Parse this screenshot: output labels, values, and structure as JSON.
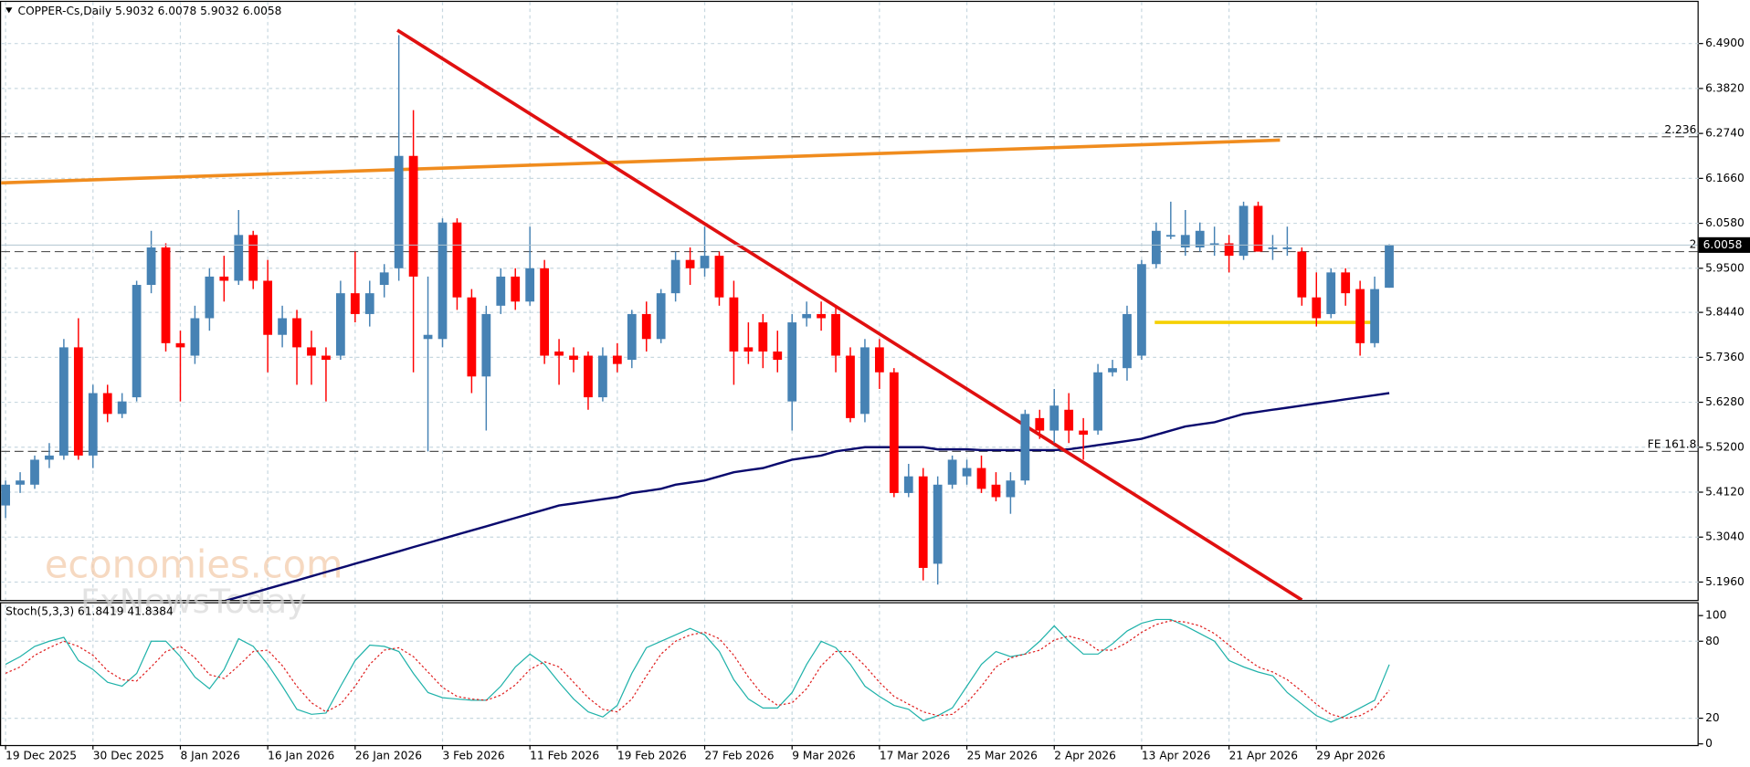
{
  "chart_data": {
    "type": "candlestick",
    "title": "COPPER-Cs,Daily",
    "watermarks": [
      "economies.com",
      "FxNewsToday"
    ],
    "up_color": "#4682b4",
    "down_color": "#ff0000",
    "categories": [
      "19 Dec 2025",
      null,
      null,
      null,
      null,
      null,
      "30 Dec 2025",
      null,
      null,
      null,
      null,
      null,
      "8 Jan 2026",
      null,
      null,
      null,
      null,
      null,
      "16 Jan 2026",
      null,
      null,
      null,
      null,
      null,
      "26 Jan 2026",
      null,
      null,
      null,
      null,
      null,
      "3 Feb 2026",
      null,
      null,
      null,
      null,
      null,
      "11 Feb 2026",
      null,
      null,
      null,
      null,
      null,
      "19 Feb 2026",
      null,
      null,
      null,
      null,
      null,
      "27 Feb 2026",
      null,
      null,
      null,
      null,
      null,
      "9 Mar 2026",
      null,
      null,
      null,
      null,
      null,
      "17 Mar 2026",
      null,
      null,
      null,
      null,
      null,
      "25 Mar 2026",
      null,
      null,
      null,
      null,
      null,
      "2 Apr 2026",
      null,
      null,
      null,
      null,
      null,
      "13 Apr 2026",
      null,
      null,
      null,
      null,
      null,
      "21 Apr 2026",
      null,
      null,
      null,
      null,
      null,
      "29 Apr 2026",
      null,
      null,
      null,
      null,
      null
    ],
    "open": [
      5.38,
      5.43,
      5.43,
      5.49,
      5.5,
      5.76,
      5.5,
      5.65,
      5.6,
      5.64,
      5.91,
      6.0,
      5.77,
      5.74,
      5.83,
      5.93,
      5.92,
      6.03,
      5.92,
      5.79,
      5.83,
      5.76,
      5.74,
      5.74,
      5.89,
      5.84,
      5.91,
      5.95,
      6.22,
      5.78,
      5.78,
      6.06,
      5.88,
      5.69,
      5.86,
      5.93,
      5.87,
      5.95,
      5.75,
      5.74,
      5.74,
      5.64,
      5.74,
      5.73,
      5.84,
      5.78,
      5.89,
      5.97,
      5.95,
      5.98,
      5.88,
      5.76,
      5.82,
      5.75,
      5.63,
      5.83,
      5.84,
      5.84,
      5.74,
      5.6,
      5.76,
      5.7,
      5.41,
      5.45,
      5.24,
      5.43,
      5.45,
      5.47,
      5.43,
      5.4,
      5.44,
      5.59,
      5.56,
      5.61,
      5.56,
      5.56,
      5.7,
      5.71,
      5.74,
      5.96,
      6.03,
      6.0,
      6.0,
      6.01,
      6.01,
      5.98,
      6.1,
      6.0,
      6.0,
      5.99,
      5.88,
      5.84,
      5.94,
      5.9,
      5.77,
      5.9032
    ],
    "high": [
      5.44,
      5.46,
      5.5,
      5.53,
      5.78,
      5.83,
      5.67,
      5.67,
      5.65,
      5.92,
      6.04,
      6.01,
      5.8,
      5.86,
      5.95,
      5.98,
      6.09,
      6.04,
      5.97,
      5.86,
      5.85,
      5.8,
      5.76,
      5.92,
      5.99,
      5.92,
      5.96,
      6.51,
      6.33,
      5.93,
      6.07,
      6.07,
      5.9,
      5.86,
      5.95,
      5.95,
      6.05,
      5.97,
      5.78,
      5.76,
      5.75,
      5.76,
      5.77,
      5.85,
      5.87,
      5.9,
      5.99,
      6.0,
      6.05,
      5.99,
      5.92,
      5.82,
      5.84,
      5.8,
      5.84,
      5.87,
      5.87,
      5.86,
      5.76,
      5.78,
      5.78,
      5.71,
      5.48,
      5.47,
      5.45,
      5.5,
      5.49,
      5.5,
      5.46,
      5.46,
      5.61,
      5.61,
      5.66,
      5.65,
      5.59,
      5.72,
      5.73,
      5.86,
      5.97,
      6.06,
      6.11,
      6.09,
      6.06,
      6.05,
      6.03,
      6.11,
      6.11,
      6.03,
      6.05,
      6.0,
      5.94,
      5.95,
      5.95,
      5.92,
      5.93,
      6.0078
    ],
    "low": [
      5.35,
      5.41,
      5.42,
      5.47,
      5.49,
      5.49,
      5.47,
      5.58,
      5.59,
      5.63,
      5.89,
      5.75,
      5.63,
      5.72,
      5.8,
      5.87,
      5.91,
      5.9,
      5.7,
      5.76,
      5.67,
      5.67,
      5.63,
      5.73,
      5.82,
      5.81,
      5.88,
      5.92,
      5.7,
      5.51,
      5.76,
      5.85,
      5.65,
      5.56,
      5.84,
      5.85,
      5.86,
      5.72,
      5.67,
      5.7,
      5.61,
      5.63,
      5.7,
      5.71,
      5.75,
      5.77,
      5.87,
      5.91,
      5.93,
      5.86,
      5.67,
      5.72,
      5.71,
      5.7,
      5.56,
      5.81,
      5.8,
      5.7,
      5.58,
      5.58,
      5.66,
      5.4,
      5.4,
      5.2,
      5.19,
      5.42,
      5.43,
      5.41,
      5.39,
      5.36,
      5.43,
      5.54,
      5.53,
      5.53,
      5.49,
      5.55,
      5.69,
      5.68,
      5.73,
      5.95,
      6.02,
      5.98,
      5.99,
      5.98,
      5.94,
      5.97,
      5.99,
      5.97,
      5.98,
      5.86,
      5.81,
      5.83,
      5.86,
      5.74,
      5.76,
      5.9032
    ],
    "close": [
      5.43,
      5.44,
      5.49,
      5.5,
      5.76,
      5.5,
      5.65,
      5.6,
      5.63,
      5.91,
      6.0,
      5.77,
      5.76,
      5.83,
      5.93,
      5.92,
      6.03,
      5.92,
      5.79,
      5.83,
      5.76,
      5.74,
      5.73,
      5.89,
      5.84,
      5.89,
      5.94,
      6.22,
      5.93,
      5.79,
      6.06,
      5.88,
      5.69,
      5.84,
      5.93,
      5.87,
      5.95,
      5.74,
      5.74,
      5.73,
      5.64,
      5.74,
      5.72,
      5.84,
      5.78,
      5.89,
      5.97,
      5.95,
      5.98,
      5.88,
      5.75,
      5.75,
      5.75,
      5.73,
      5.82,
      5.84,
      5.83,
      5.74,
      5.59,
      5.76,
      5.7,
      5.41,
      5.45,
      5.23,
      5.43,
      5.49,
      5.47,
      5.42,
      5.4,
      5.44,
      5.6,
      5.56,
      5.62,
      5.56,
      5.55,
      5.7,
      5.71,
      5.84,
      5.96,
      6.04,
      6.03,
      6.03,
      6.04,
      6.01,
      5.98,
      6.1,
      5.99,
      6.0,
      6.0,
      5.88,
      5.83,
      5.94,
      5.89,
      5.77,
      5.9,
      6.0058
    ],
    "ma": {
      "color": "#0a0a6e",
      "values": [
        null,
        null,
        null,
        null,
        null,
        null,
        null,
        null,
        null,
        null,
        null,
        null,
        null,
        null,
        null,
        5.15,
        5.16,
        5.17,
        5.18,
        5.19,
        5.2,
        5.21,
        5.22,
        5.23,
        5.24,
        5.25,
        5.26,
        5.27,
        5.28,
        5.29,
        5.3,
        5.31,
        5.32,
        5.33,
        5.34,
        5.35,
        5.36,
        5.37,
        5.38,
        5.385,
        5.39,
        5.395,
        5.4,
        5.41,
        5.415,
        5.42,
        5.43,
        5.435,
        5.44,
        5.45,
        5.46,
        5.465,
        5.47,
        5.48,
        5.49,
        5.495,
        5.5,
        5.51,
        5.515,
        5.52,
        5.52,
        5.52,
        5.52,
        5.52,
        5.515,
        5.515,
        5.515,
        5.513,
        5.513,
        5.513,
        5.513,
        5.513,
        5.513,
        5.515,
        5.52,
        5.525,
        5.53,
        5.535,
        5.54,
        5.55,
        5.56,
        5.57,
        5.575,
        5.58,
        5.59,
        5.6,
        5.605,
        5.61,
        5.615,
        5.62,
        5.625,
        5.63,
        5.635,
        5.64,
        5.645,
        5.65
      ]
    },
    "trendlines": [
      {
        "color": "#f08c1e",
        "from": [
          -0.4,
          6.155
        ],
        "to": [
          87.5,
          6.258
        ]
      },
      {
        "color": "#e01010",
        "from": [
          26.9,
          6.522
        ],
        "to": [
          89.0,
          5.153
        ]
      },
      {
        "color": "#f5d000",
        "from": [
          78.9,
          5.82
        ],
        "to": [
          94.1,
          5.82
        ]
      }
    ],
    "levels": [
      {
        "value": 6.266,
        "label": "2.236"
      },
      {
        "value": 5.99,
        "label": "2"
      },
      {
        "value": 5.51,
        "label": "FE 161.8"
      }
    ],
    "ylim": [
      5.153,
      6.59
    ],
    "yticks": [
      {
        "value": 6.49,
        "label": "6.4900"
      },
      {
        "value": 6.382,
        "label": "6.3820"
      },
      {
        "value": 6.274,
        "label": "6.2740"
      },
      {
        "value": 6.166,
        "label": "6.1660"
      },
      {
        "value": 6.058,
        "label": "6.0580"
      },
      {
        "value": 5.95,
        "label": "5.9500"
      },
      {
        "value": 5.844,
        "label": "5.8440"
      },
      {
        "value": 5.736,
        "label": "5.7360"
      },
      {
        "value": 5.628,
        "label": "5.6280"
      },
      {
        "value": 5.52,
        "label": "5.5200"
      },
      {
        "value": 5.412,
        "label": "5.4120"
      },
      {
        "value": 5.304,
        "label": "5.3040"
      },
      {
        "value": 5.196,
        "label": "5.1960"
      }
    ],
    "grid": true,
    "stoch": {
      "name": "Stoch(5,3,3)",
      "ylim": [
        0,
        100
      ],
      "yticks": [
        100,
        80,
        20,
        0
      ],
      "k": {
        "color": "#20b2aa",
        "values": [
          62,
          68,
          76,
          80,
          83,
          65,
          58,
          48,
          45,
          55,
          80,
          80,
          68,
          52,
          43,
          58,
          82,
          76,
          62,
          45,
          27,
          23,
          24,
          45,
          65,
          77,
          76,
          72,
          55,
          40,
          36,
          35,
          34,
          34,
          45,
          60,
          70,
          62,
          48,
          35,
          25,
          21,
          30,
          55,
          75,
          80,
          85,
          90,
          85,
          72,
          50,
          35,
          28,
          28,
          40,
          62,
          80,
          75,
          62,
          45,
          37,
          30,
          27,
          18,
          22,
          28,
          45,
          62,
          72,
          68,
          70,
          80,
          92,
          80,
          70,
          70,
          78,
          88,
          94,
          97,
          97,
          92,
          86,
          80,
          65,
          60,
          56,
          53,
          40,
          31,
          22,
          17,
          22,
          28,
          34,
          61.8419
        ]
      },
      "d": {
        "color": "#e02020",
        "values": [
          55,
          60,
          69,
          75,
          80,
          76,
          69,
          57,
          50,
          49,
          60,
          72,
          76,
          67,
          54,
          51,
          61,
          72,
          73,
          61,
          45,
          32,
          25,
          31,
          45,
          62,
          73,
          75,
          68,
          56,
          44,
          37,
          35,
          34,
          38,
          46,
          58,
          64,
          60,
          48,
          36,
          27,
          25,
          35,
          53,
          70,
          80,
          85,
          87,
          82,
          69,
          52,
          38,
          30,
          32,
          43,
          61,
          72,
          72,
          61,
          48,
          37,
          31,
          25,
          22,
          23,
          32,
          45,
          60,
          67,
          70,
          73,
          81,
          84,
          81,
          73,
          73,
          79,
          87,
          93,
          96,
          95,
          92,
          86,
          77,
          68,
          60,
          56,
          50,
          41,
          31,
          23,
          20,
          22,
          28,
          41.8384
        ]
      }
    }
  }
}
